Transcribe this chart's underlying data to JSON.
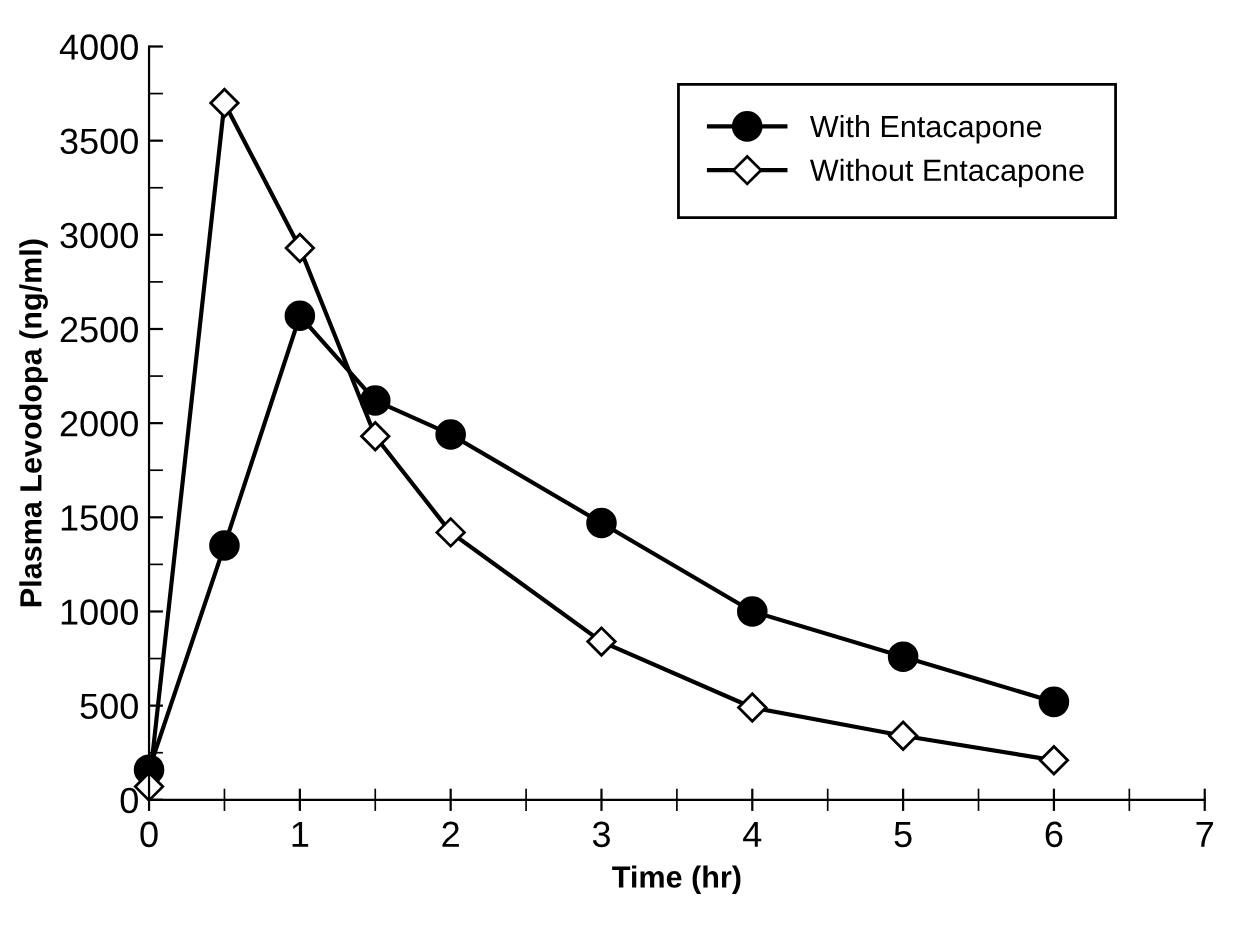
{
  "chart_data": {
    "type": "line",
    "xlabel": "Time (hr)",
    "ylabel": "Plasma Levodopa (ng/ml)",
    "xlim": [
      0,
      7
    ],
    "xticks": [
      0,
      1,
      2,
      3,
      4,
      5,
      6,
      7
    ],
    "ylim": [
      0,
      4000
    ],
    "yticks": [
      0,
      500,
      1000,
      1500,
      2000,
      2500,
      3000,
      3500,
      4000
    ],
    "grid": false,
    "legend": "top right",
    "line_style": "solid",
    "series": [
      {
        "name": "With Entacapone",
        "color": "#000000",
        "marker": "circle",
        "x": [
          0,
          0.5,
          1,
          1.5,
          2,
          3,
          4,
          5,
          6
        ],
        "values": [
          160,
          1350,
          2570,
          2120,
          1940,
          1470,
          1000,
          760,
          520
        ]
      },
      {
        "name": "Without Entacapone",
        "color": "#000000",
        "marker": "diamond",
        "x": [
          0,
          0.5,
          1,
          1.5,
          2,
          3,
          4,
          5,
          6
        ],
        "values": [
          70,
          3700,
          2930,
          1930,
          1420,
          840,
          490,
          340,
          210
        ]
      }
    ]
  }
}
